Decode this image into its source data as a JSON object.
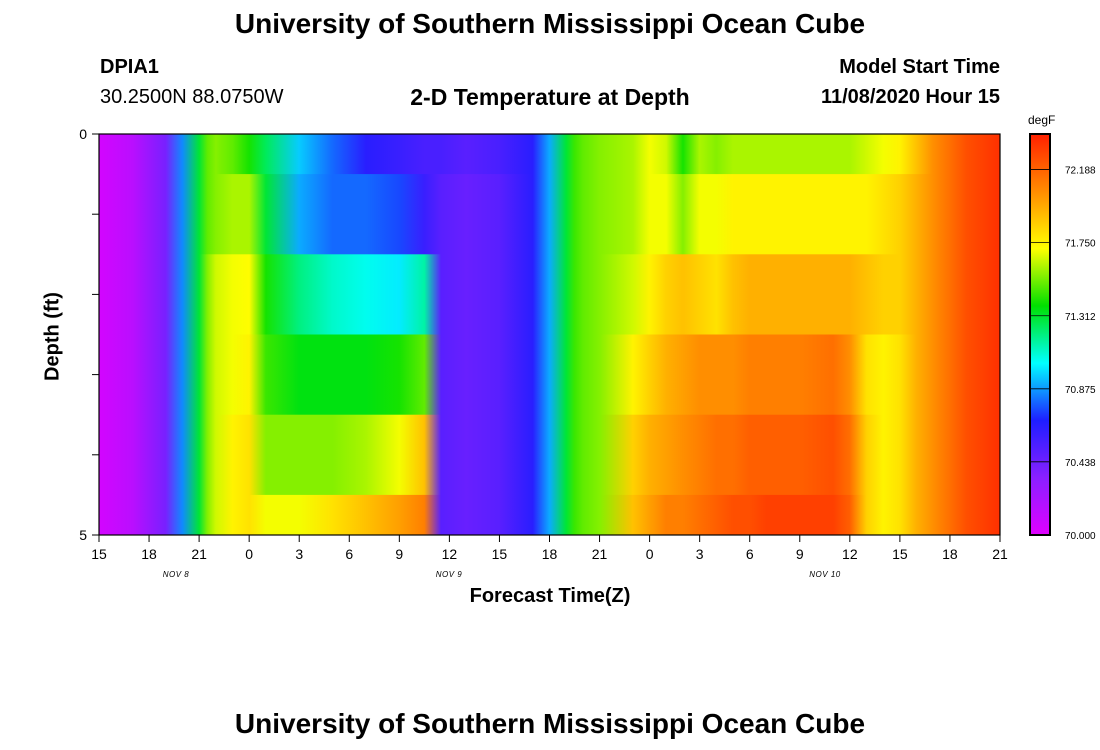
{
  "header": {
    "title_top": "University of Southern Mississippi Ocean Cube",
    "title_bottom": "University of Southern Mississippi Ocean Cube",
    "station_id": "DPIA1",
    "coordinates": "30.2500N 88.0750W",
    "plot_title": "2-D Temperature at Depth",
    "model_start_label": "Model Start Time",
    "model_start_value": "11/08/2020 Hour 15"
  },
  "chart_data": {
    "type": "heatmap",
    "title": "2-D Temperature at Depth",
    "xlabel": "Forecast Time(Z)",
    "ylabel": "Depth (ft)",
    "x_tick_labels": [
      "15",
      "18",
      "21",
      "0",
      "3",
      "6",
      "9",
      "12",
      "15",
      "18",
      "21",
      "0",
      "3",
      "6",
      "9",
      "12",
      "15",
      "18",
      "21"
    ],
    "x_hours_from_start": [
      0,
      3,
      6,
      9,
      12,
      15,
      18,
      21,
      24,
      27,
      30,
      33,
      36,
      39,
      42,
      45,
      48,
      51,
      54
    ],
    "date_labels": [
      "NOV 8",
      "NOV 9",
      "NOV 10"
    ],
    "y_tick_labels": [
      "0",
      "5"
    ],
    "ylim": [
      0,
      5
    ],
    "colorbar": {
      "unit": "degF",
      "ticks": [
        70.0,
        70.438,
        70.875,
        71.312,
        71.75,
        72.188
      ],
      "tick_labels": [
        "70.000",
        "70.438",
        "70.875",
        "71.312",
        "71.750",
        "72.188"
      ],
      "range": [
        70.0,
        72.4
      ],
      "colors": [
        "#e000ff",
        "#8a20ff",
        "#1e1eff",
        "#00ffff",
        "#00e000",
        "#ffff00",
        "#ff8c00",
        "#ff2000"
      ]
    },
    "depth_bands_ft": [
      "0-0.5",
      "0.5-1.5",
      "1.5-2.5",
      "2.5-3.5",
      "3.5-4.5",
      "4.5-5"
    ],
    "x_hours": [
      0,
      2,
      4,
      5,
      6,
      6.5,
      7,
      8,
      9,
      10,
      12,
      14,
      16,
      18,
      19.5,
      20.5,
      22,
      24,
      26,
      27,
      28,
      28.5,
      29,
      30,
      32,
      33,
      34,
      35,
      36,
      37,
      38,
      39,
      40,
      42,
      44,
      45,
      46,
      47,
      48,
      49,
      50,
      51,
      52,
      53,
      54
    ],
    "values": [
      [
        70.05,
        70.15,
        70.4,
        70.85,
        71.3,
        71.5,
        71.55,
        71.5,
        71.4,
        71.25,
        70.95,
        70.8,
        70.65,
        70.6,
        70.55,
        70.55,
        70.5,
        70.55,
        70.65,
        70.9,
        71.3,
        71.45,
        71.5,
        71.55,
        71.6,
        71.7,
        71.65,
        71.4,
        71.6,
        71.55,
        71.6,
        71.6,
        71.6,
        71.6,
        71.6,
        71.6,
        71.65,
        71.7,
        71.75,
        71.9,
        72.05,
        72.15,
        72.25,
        72.3,
        72.35
      ],
      [
        70.05,
        70.15,
        70.4,
        70.85,
        71.3,
        71.5,
        71.55,
        71.6,
        71.6,
        71.3,
        70.9,
        70.8,
        70.8,
        70.75,
        70.6,
        70.5,
        70.45,
        70.5,
        70.65,
        70.9,
        71.3,
        71.45,
        71.5,
        71.55,
        71.6,
        71.7,
        71.7,
        71.55,
        71.7,
        71.7,
        71.75,
        71.75,
        71.75,
        71.75,
        71.75,
        71.75,
        71.75,
        71.8,
        71.85,
        71.95,
        72.05,
        72.15,
        72.25,
        72.3,
        72.35
      ],
      [
        70.05,
        70.15,
        70.4,
        70.85,
        71.3,
        71.55,
        71.65,
        71.7,
        71.72,
        71.4,
        71.2,
        71.1,
        71.05,
        71.0,
        71.15,
        70.5,
        70.45,
        70.5,
        70.65,
        70.9,
        71.3,
        71.45,
        71.5,
        71.55,
        71.65,
        71.75,
        71.85,
        71.9,
        71.85,
        71.8,
        71.9,
        71.95,
        71.95,
        71.95,
        71.95,
        71.95,
        71.9,
        71.85,
        71.85,
        71.95,
        72.05,
        72.15,
        72.25,
        72.3,
        72.35
      ],
      [
        70.05,
        70.15,
        70.4,
        70.85,
        71.3,
        71.55,
        71.65,
        71.7,
        71.75,
        71.45,
        71.35,
        71.35,
        71.35,
        71.4,
        71.5,
        70.5,
        70.45,
        70.5,
        70.65,
        70.9,
        71.3,
        71.45,
        71.5,
        71.55,
        71.75,
        71.85,
        71.95,
        72.0,
        72.05,
        72.05,
        72.05,
        72.1,
        72.1,
        72.1,
        72.15,
        72.05,
        71.8,
        71.75,
        71.8,
        71.95,
        72.05,
        72.15,
        72.25,
        72.3,
        72.35
      ],
      [
        70.05,
        70.15,
        70.4,
        70.85,
        71.3,
        71.55,
        71.65,
        71.75,
        71.8,
        71.55,
        71.55,
        71.55,
        71.6,
        71.7,
        71.9,
        70.5,
        70.45,
        70.5,
        70.65,
        70.9,
        71.3,
        71.45,
        71.5,
        71.55,
        71.85,
        71.95,
        72.0,
        72.05,
        72.1,
        72.15,
        72.15,
        72.2,
        72.2,
        72.2,
        72.25,
        72.15,
        71.85,
        71.75,
        71.8,
        71.95,
        72.05,
        72.15,
        72.25,
        72.3,
        72.35
      ],
      [
        70.05,
        70.15,
        70.4,
        70.85,
        71.3,
        71.55,
        71.65,
        71.75,
        71.8,
        71.7,
        71.7,
        71.8,
        71.9,
        72.0,
        72.1,
        70.5,
        70.45,
        70.5,
        70.65,
        70.9,
        71.3,
        71.45,
        71.5,
        71.55,
        71.9,
        72.0,
        72.1,
        72.1,
        72.15,
        72.2,
        72.25,
        72.25,
        72.3,
        72.3,
        72.3,
        72.2,
        71.85,
        71.75,
        71.8,
        71.95,
        72.05,
        72.15,
        72.25,
        72.3,
        72.35
      ]
    ]
  }
}
